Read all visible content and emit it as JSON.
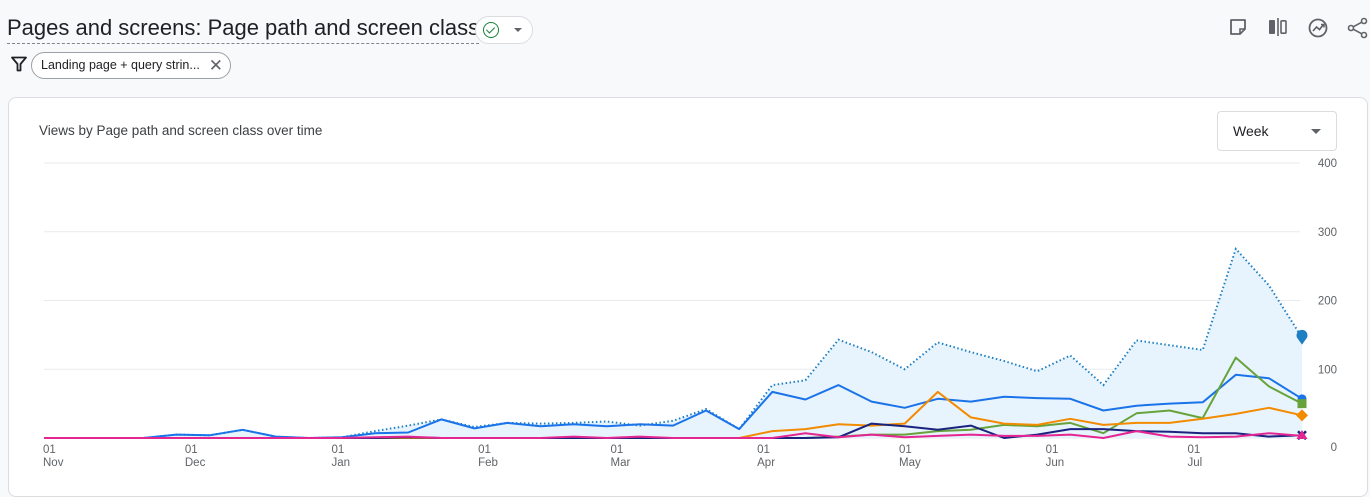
{
  "header": {
    "title": "Pages and screens: Page path and screen class",
    "status_icon": "check-circle-icon",
    "filter_chip": "Landing page + query strin...",
    "toolbar_icons": [
      "note-icon",
      "compare-icon",
      "insights-icon",
      "share-icon"
    ]
  },
  "card": {
    "title": "Views by Page path and screen class over time",
    "granularity": "Week"
  },
  "chart_data": {
    "type": "line",
    "x": [
      "Nov 01",
      "Nov 08",
      "Nov 15",
      "Nov 22",
      "Nov 29",
      "Dec 06",
      "Dec 13",
      "Dec 20",
      "Dec 27",
      "Jan 03",
      "Jan 10",
      "Jan 17",
      "Jan 24",
      "Jan 31",
      "Feb 07",
      "Feb 14",
      "Feb 21",
      "Feb 28",
      "Mar 07",
      "Mar 14",
      "Mar 21",
      "Mar 28",
      "Apr 04",
      "Apr 11",
      "Apr 18",
      "Apr 25",
      "May 02",
      "May 09",
      "May 16",
      "May 23",
      "May 30",
      "Jun 06",
      "Jun 13",
      "Jun 20",
      "Jun 27",
      "Jul 04",
      "Jul 11",
      "Jul 18",
      "Jul 25"
    ],
    "x_ticks": [
      {
        "day": "01",
        "month": "Nov"
      },
      {
        "day": "01",
        "month": "Dec"
      },
      {
        "day": "01",
        "month": "Jan"
      },
      {
        "day": "01",
        "month": "Feb"
      },
      {
        "day": "01",
        "month": "Mar"
      },
      {
        "day": "01",
        "month": "Apr"
      },
      {
        "day": "01",
        "month": "May"
      },
      {
        "day": "01",
        "month": "Jun"
      },
      {
        "day": "01",
        "month": "Jul"
      }
    ],
    "y_ticks": [
      "0",
      "100",
      "200",
      "300",
      "400"
    ],
    "ylim": [
      0,
      400
    ],
    "y_axis_side": "right",
    "grid": true,
    "series": [
      {
        "color": "#1e7fc2",
        "style": "dotted-area",
        "marker": "pin",
        "values": [
          0,
          0,
          0,
          0,
          5,
          4,
          12,
          2,
          0,
          1,
          10,
          18,
          27,
          16,
          22,
          21,
          22,
          24,
          18,
          25,
          42,
          13,
          77,
          84,
          143,
          125,
          100,
          139,
          125,
          112,
          97,
          120,
          77,
          142,
          135,
          128,
          275,
          222,
          146
        ]
      },
      {
        "color": "#1a73e8",
        "style": "solid",
        "marker": "circle",
        "values": [
          0,
          0,
          0,
          0,
          5,
          4,
          12,
          2,
          0,
          1,
          7,
          8,
          27,
          14,
          22,
          17,
          20,
          17,
          20,
          18,
          40,
          13,
          67,
          56,
          77,
          53,
          44,
          57,
          53,
          60,
          58,
          57,
          40,
          47,
          50,
          52,
          92,
          87,
          57
        ]
      },
      {
        "color": "#67a33a",
        "style": "solid",
        "marker": "square",
        "values": [
          0,
          0,
          0,
          0,
          0,
          0,
          0,
          0,
          0,
          0,
          0,
          0,
          0,
          0,
          0,
          0,
          0,
          0,
          0,
          0,
          0,
          0,
          0,
          0,
          2,
          5,
          5,
          10,
          12,
          19,
          17,
          22,
          7,
          36,
          40,
          29,
          117,
          75,
          50
        ]
      },
      {
        "color": "#f28b00",
        "style": "solid",
        "marker": "diamond",
        "values": [
          0,
          0,
          0,
          0,
          0,
          0,
          0,
          0,
          0,
          0,
          0,
          0,
          0,
          0,
          0,
          0,
          0,
          0,
          0,
          0,
          0,
          0,
          10,
          13,
          20,
          18,
          21,
          67,
          30,
          21,
          19,
          28,
          19,
          22,
          22,
          28,
          35,
          44,
          33
        ]
      },
      {
        "color": "#1a237e",
        "style": "solid",
        "marker": "x",
        "values": [
          0,
          0,
          0,
          0,
          0,
          0,
          0,
          0,
          0,
          0,
          0,
          1,
          0,
          0,
          0,
          0,
          0,
          0,
          0,
          0,
          0,
          0,
          0,
          0,
          1,
          21,
          17,
          12,
          18,
          0,
          5,
          13,
          13,
          10,
          9,
          7,
          7,
          2,
          4
        ]
      },
      {
        "color": "#e52592",
        "style": "solid",
        "marker": "triangle",
        "values": [
          0,
          0,
          0,
          0,
          0,
          0,
          0,
          0,
          0,
          0,
          1,
          2,
          0,
          0,
          0,
          0,
          2,
          0,
          2,
          0,
          0,
          0,
          0,
          7,
          1,
          5,
          1,
          3,
          5,
          3,
          3,
          5,
          0,
          10,
          2,
          1,
          2,
          7,
          3
        ]
      }
    ]
  }
}
